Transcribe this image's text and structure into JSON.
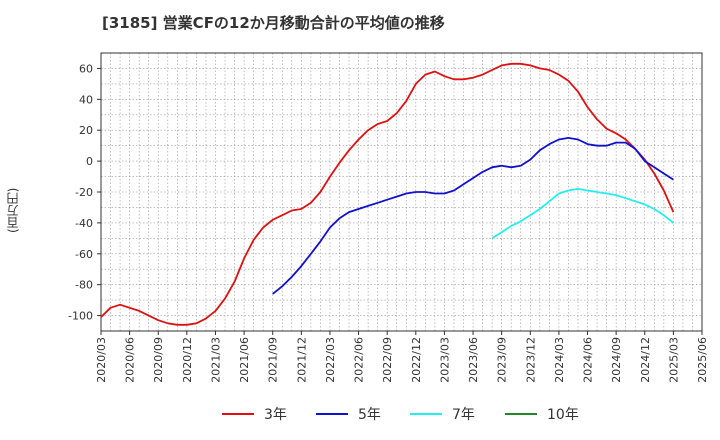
{
  "chart_data": {
    "type": "line",
    "title": "[3185]  営業CFの12か月移動合計の平均値の推移",
    "ylabel": "(百万円)",
    "xlabel": "",
    "ylim": [
      -110,
      70
    ],
    "yticks": [
      60,
      40,
      20,
      0,
      -20,
      -40,
      -60,
      -80,
      -100
    ],
    "xticks": [
      "2020/03",
      "2020/06",
      "2020/09",
      "2020/12",
      "2021/03",
      "2021/06",
      "2021/09",
      "2021/12",
      "2022/03",
      "2022/06",
      "2022/09",
      "2022/12",
      "2023/03",
      "2023/06",
      "2023/09",
      "2023/12",
      "2024/03",
      "2024/06",
      "2024/09",
      "2024/12",
      "2025/03",
      "2025/06"
    ],
    "grid": true,
    "legend_position": "bottom",
    "series": [
      {
        "name": "3年",
        "color": "#dd1111",
        "x": [
          "2020/03",
          "2020/04",
          "2020/05",
          "2020/06",
          "2020/07",
          "2020/08",
          "2020/09",
          "2020/10",
          "2020/11",
          "2020/12",
          "2021/01",
          "2021/02",
          "2021/03",
          "2021/04",
          "2021/05",
          "2021/06",
          "2021/07",
          "2021/08",
          "2021/09",
          "2021/10",
          "2021/11",
          "2021/12",
          "2022/01",
          "2022/02",
          "2022/03",
          "2022/04",
          "2022/05",
          "2022/06",
          "2022/07",
          "2022/08",
          "2022/09",
          "2022/10",
          "2022/11",
          "2022/12",
          "2023/01",
          "2023/02",
          "2023/03",
          "2023/04",
          "2023/05",
          "2023/06",
          "2023/07",
          "2023/08",
          "2023/09",
          "2023/10",
          "2023/11",
          "2023/12",
          "2024/01",
          "2024/02",
          "2024/03",
          "2024/04",
          "2024/05",
          "2024/06",
          "2024/07",
          "2024/08",
          "2024/09",
          "2024/10",
          "2024/11",
          "2024/12",
          "2025/01",
          "2025/02",
          "2025/03"
        ],
        "values": [
          -101,
          -95,
          -93,
          -95,
          -97,
          -100,
          -103,
          -105,
          -106,
          -106,
          -105,
          -102,
          -97,
          -89,
          -78,
          -63,
          -51,
          -43,
          -38,
          -35,
          -32,
          -31,
          -27,
          -20,
          -10,
          -1,
          7,
          14,
          20,
          24,
          26,
          31,
          39,
          50,
          56,
          58,
          55,
          53,
          53,
          54,
          56,
          59,
          62,
          63,
          63,
          62,
          60,
          59,
          56,
          52,
          45,
          35,
          27,
          21,
          18,
          14,
          8,
          1,
          -8,
          -19,
          -33
        ]
      },
      {
        "name": "5年",
        "color": "#1111cc",
        "x": [
          "2021/09",
          "2021/10",
          "2021/11",
          "2021/12",
          "2022/01",
          "2022/02",
          "2022/03",
          "2022/04",
          "2022/05",
          "2022/06",
          "2022/07",
          "2022/08",
          "2022/09",
          "2022/10",
          "2022/11",
          "2022/12",
          "2023/01",
          "2023/02",
          "2023/03",
          "2023/04",
          "2023/05",
          "2023/06",
          "2023/07",
          "2023/08",
          "2023/09",
          "2023/10",
          "2023/11",
          "2023/12",
          "2024/01",
          "2024/02",
          "2024/03",
          "2024/04",
          "2024/05",
          "2024/06",
          "2024/07",
          "2024/08",
          "2024/09",
          "2024/10",
          "2024/11",
          "2024/12",
          "2025/01",
          "2025/02",
          "2025/03"
        ],
        "values": [
          -86,
          -81,
          -75,
          -68,
          -60,
          -52,
          -43,
          -37,
          -33,
          -31,
          -29,
          -27,
          -25,
          -23,
          -21,
          -20,
          -20,
          -21,
          -21,
          -19,
          -15,
          -11,
          -7,
          -4,
          -3,
          -4,
          -3,
          1,
          7,
          11,
          14,
          15,
          14,
          11,
          10,
          10,
          12,
          12,
          8,
          0,
          -4,
          -8,
          -12
        ]
      },
      {
        "name": "7年",
        "color": "#22eeee",
        "x": [
          "2023/08",
          "2023/09",
          "2023/10",
          "2023/11",
          "2023/12",
          "2024/01",
          "2024/02",
          "2024/03",
          "2024/04",
          "2024/05",
          "2024/06",
          "2024/07",
          "2024/08",
          "2024/09",
          "2024/10",
          "2024/11",
          "2024/12",
          "2025/01",
          "2025/02",
          "2025/03"
        ],
        "values": [
          -50,
          -46,
          -42,
          -39,
          -35,
          -31,
          -26,
          -21,
          -19,
          -18,
          -19,
          -20,
          -21,
          -22,
          -24,
          -26,
          -28,
          -31,
          -35,
          -40
        ]
      },
      {
        "name": "10年",
        "color": "#228822",
        "x": [],
        "values": []
      }
    ]
  }
}
